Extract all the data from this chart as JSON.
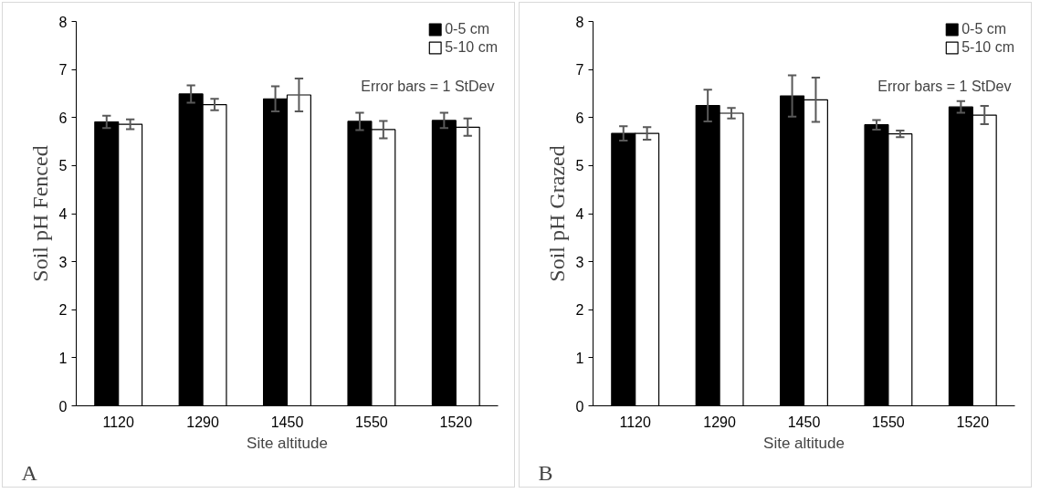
{
  "chart_data": [
    {
      "type": "bar",
      "ylabel": "Soil pH Fenced",
      "xlabel": "Site altitude",
      "categories": [
        "1120",
        "1290",
        "1450",
        "1550",
        "1520"
      ],
      "ylim": [
        0,
        8
      ],
      "yticks": [
        0,
        1,
        2,
        3,
        4,
        5,
        6,
        7,
        8
      ],
      "grid": false,
      "legend": "top right",
      "annotations": [
        "Error bars = 1 StDev",
        "A"
      ],
      "series": [
        {
          "name": "0-5 cm",
          "color": "#000000",
          "values": [
            5.91,
            6.49,
            6.39,
            5.92,
            5.94
          ],
          "errors": [
            0.13,
            0.18,
            0.26,
            0.18,
            0.16
          ]
        },
        {
          "name": "5-10 cm",
          "color": "#ffffff",
          "values": [
            5.86,
            6.27,
            6.47,
            5.75,
            5.8
          ],
          "errors": [
            0.1,
            0.12,
            0.34,
            0.18,
            0.18
          ]
        }
      ]
    },
    {
      "type": "bar",
      "ylabel": "Soil pH Grazed",
      "xlabel": "Site altitude",
      "categories": [
        "1120",
        "1290",
        "1450",
        "1550",
        "1520"
      ],
      "ylim": [
        0,
        8
      ],
      "yticks": [
        0,
        1,
        2,
        3,
        4,
        5,
        6,
        7,
        8
      ],
      "grid": false,
      "legend": "top right",
      "annotations": [
        "Error bars = 1 StDev",
        "B"
      ],
      "series": [
        {
          "name": "0-5 cm",
          "color": "#000000",
          "values": [
            5.67,
            6.25,
            6.45,
            5.85,
            6.22
          ],
          "errors": [
            0.15,
            0.33,
            0.43,
            0.1,
            0.12
          ]
        },
        {
          "name": "5-10 cm",
          "color": "#ffffff",
          "values": [
            5.67,
            6.09,
            6.37,
            5.66,
            6.05
          ],
          "errors": [
            0.13,
            0.11,
            0.46,
            0.07,
            0.19
          ]
        }
      ]
    }
  ]
}
